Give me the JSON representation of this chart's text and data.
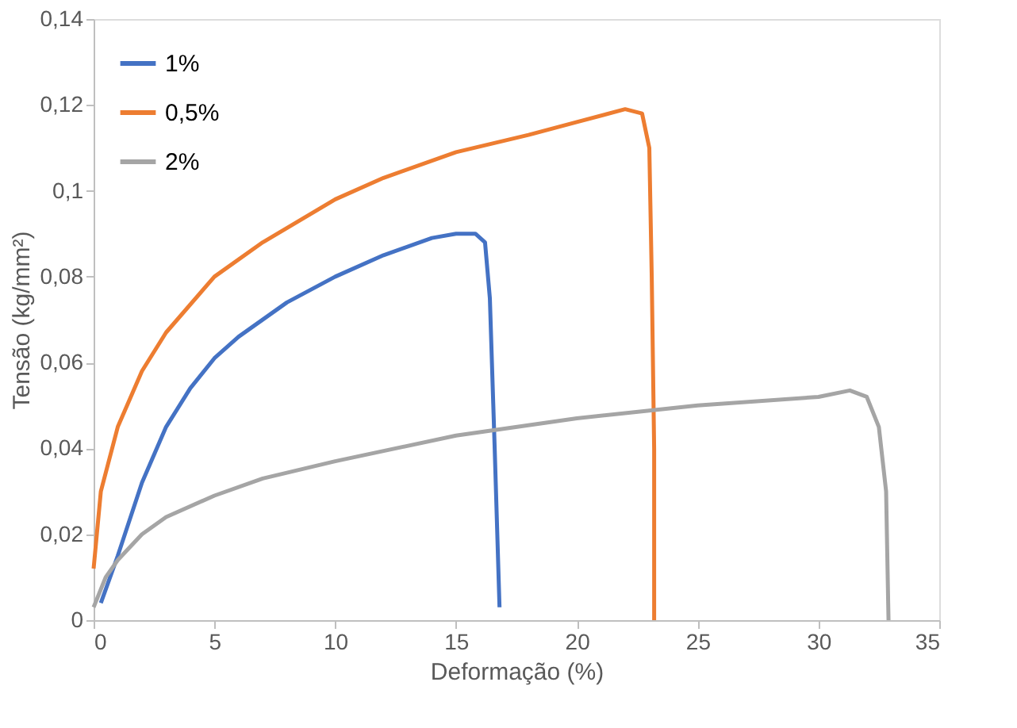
{
  "chart_data": {
    "type": "line",
    "xlabel": "Deformação (%)",
    "ylabel": "Tensão (kg/mm²)",
    "xlim": [
      0,
      35
    ],
    "xticks": [
      0,
      5,
      10,
      15,
      20,
      25,
      30,
      35
    ],
    "ylim": [
      0,
      0.14
    ],
    "yticks": [
      0,
      {
        "value": 0.02,
        "label": "0,02"
      },
      {
        "value": 0.04,
        "label": "0,04"
      },
      {
        "value": 0.06,
        "label": "0,06"
      },
      {
        "value": 0.08,
        "label": "0,08"
      },
      {
        "value": 0.1,
        "label": "0,1"
      },
      {
        "value": 0.12,
        "label": "0,12"
      },
      {
        "value": 0.14,
        "label": "0,14"
      }
    ],
    "grid": false,
    "legend": "top left",
    "marker": "none",
    "line_style": "solid",
    "series": [
      {
        "name": "1%",
        "color": "#4472c4",
        "x": [
          0.3,
          1,
          2,
          3,
          4,
          5,
          6,
          8,
          10,
          12,
          14,
          15,
          15.8,
          16.2,
          16.4,
          16.6,
          16.8
        ],
        "values": [
          0.004,
          0.015,
          0.032,
          0.045,
          0.054,
          0.061,
          0.066,
          0.074,
          0.08,
          0.085,
          0.089,
          0.09,
          0.09,
          0.088,
          0.075,
          0.04,
          0.003
        ]
      },
      {
        "name": "0,5%",
        "color": "#ed7d31",
        "x": [
          0,
          0.3,
          1,
          2,
          3,
          5,
          7,
          10,
          12,
          15,
          18,
          20,
          22,
          22.7,
          23,
          23.1,
          23.2,
          23.2
        ],
        "values": [
          0.012,
          0.03,
          0.045,
          0.058,
          0.067,
          0.08,
          0.088,
          0.098,
          0.103,
          0.109,
          0.113,
          0.116,
          0.119,
          0.118,
          0.11,
          0.08,
          0.04,
          0
        ]
      },
      {
        "name": "2%",
        "color": "#a5a5a5",
        "x": [
          0,
          0.5,
          1,
          2,
          3,
          5,
          7,
          10,
          15,
          20,
          25,
          30,
          31.3,
          32,
          32.5,
          32.8,
          32.9
        ],
        "values": [
          0.003,
          0.01,
          0.014,
          0.02,
          0.024,
          0.029,
          0.033,
          0.037,
          0.043,
          0.047,
          0.05,
          0.052,
          0.0535,
          0.052,
          0.045,
          0.03,
          0
        ]
      }
    ]
  }
}
